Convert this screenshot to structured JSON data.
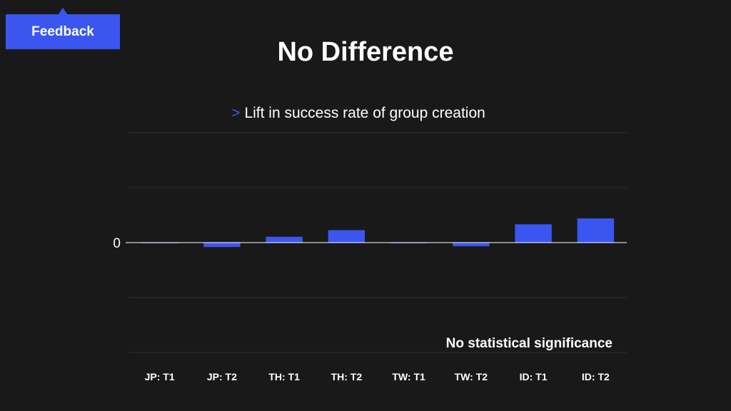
{
  "feedback": {
    "label": "Feedback"
  },
  "slide": {
    "title": "No Difference",
    "subtitle_marker": ">",
    "subtitle": "Lift in success rate of group creation"
  },
  "colors": {
    "background": "#191919",
    "bar": "#3a55f0",
    "accent": "#3a55f0",
    "gridline": "#2e2e2e",
    "zero_line": "#ffffff"
  },
  "chart_data": {
    "type": "bar",
    "categories": [
      "JP: T1",
      "JP: T2",
      "TH: T1",
      "TH: T2",
      "TW: T1",
      "TW: T2",
      "ID: T1",
      "ID: T2"
    ],
    "values": [
      -0.1,
      -0.6,
      0.8,
      1.7,
      -0.1,
      -0.5,
      2.5,
      3.3
    ],
    "ylim": [
      -15,
      15
    ],
    "y_tick_labels": [
      {
        "value": 0,
        "label": "0"
      }
    ],
    "grid": true,
    "annotation": "No statistical significance",
    "title": "",
    "xlabel": "",
    "ylabel": ""
  }
}
